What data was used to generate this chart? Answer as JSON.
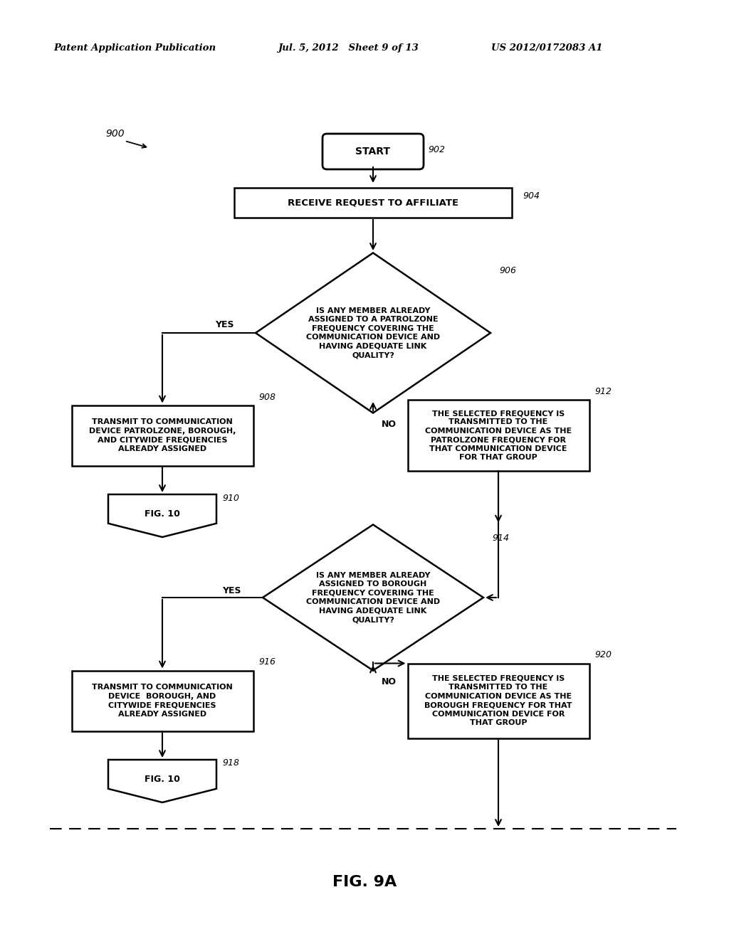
{
  "bg_color": "#ffffff",
  "header_left": "Patent Application Publication",
  "header_mid": "Jul. 5, 2012   Sheet 9 of 13",
  "header_right": "US 2012/0172083 A1",
  "fig_label": "FIG. 9A",
  "start_label": "START",
  "ref_902": "902",
  "ref_904": "904",
  "ref_906": "906",
  "ref_908": "908",
  "ref_910": "910",
  "ref_912": "912",
  "ref_914": "914",
  "ref_916": "916",
  "ref_918": "918",
  "ref_920": "920",
  "ref_900": "900",
  "n904_text": "RECEIVE REQUEST TO AFFILIATE",
  "n906_text": "IS ANY MEMBER ALREADY\nASSIGNED TO A PATROLZONE\nFREQUENCY COVERING THE\nCOMMUNICATION DEVICE AND\nHAVING ADEQUATE LINK\nQUALITY?",
  "n908_text": "TRANSMIT TO COMMUNICATION\nDEVICE PATROLZONE, BOROUGH,\nAND CITYWIDE FREQUENCIES\nALREADY ASSIGNED",
  "n910_text": "FIG. 10",
  "n912_text": "THE SELECTED FREQUENCY IS\nTRANSMITTED TO THE\nCOMMUNICATION DEVICE AS THE\nPATROLZONE FREQUENCY FOR\nTHAT COMMUNICATION DEVICE\nFOR THAT GROUP",
  "n914_text": "IS ANY MEMBER ALREADY\nASSIGNED TO BOROUGH\nFREQUENCY COVERING THE\nCOMMUNICATION DEVICE AND\nHAVING ADEQUATE LINK\nQUALITY?",
  "n916_text": "TRANSMIT TO COMMUNICATION\nDEVICE  BOROUGH, AND\nCITYWIDE FREQUENCIES\nALREADY ASSIGNED",
  "n918_text": "FIG. 10",
  "n920_text": "THE SELECTED FREQUENCY IS\nTRANSMITTED TO THE\nCOMMUNICATION DEVICE AS THE\nBOROUGH FREQUENCY FOR THAT\nCOMMUNICATION DEVICE FOR\nTHAT GROUP",
  "yes_label": "YES",
  "no_label": "NO"
}
